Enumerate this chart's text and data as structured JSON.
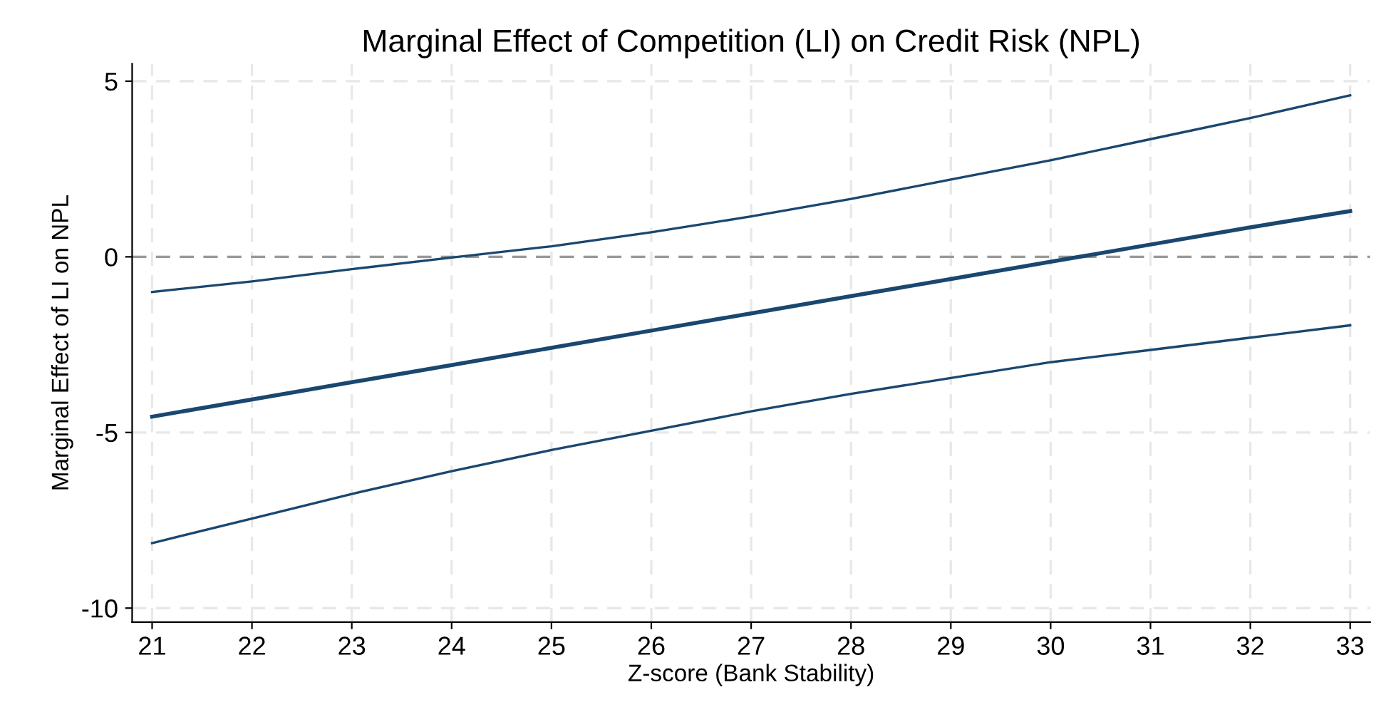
{
  "chart_data": {
    "type": "line",
    "title": "Marginal Effect of Competition (LI) on Credit Risk (NPL)",
    "xlabel": "Z-score (Bank Stability)",
    "ylabel": "Marginal Effect of LI on NPL",
    "x": [
      21,
      22,
      23,
      24,
      25,
      26,
      27,
      28,
      29,
      30,
      31,
      32,
      33
    ],
    "series": [
      {
        "color": "#1a476f",
        "values": [
          -1.0,
          -0.7,
          -0.35,
          -0.02,
          0.3,
          0.7,
          1.15,
          1.65,
          2.2,
          2.75,
          3.35,
          3.95,
          4.6
        ]
      },
      {
        "color": "#1a476f",
        "values": [
          -4.55,
          -4.06,
          -3.57,
          -3.08,
          -2.59,
          -2.1,
          -1.61,
          -1.12,
          -0.63,
          -0.14,
          0.35,
          0.84,
          1.3
        ]
      },
      {
        "color": "#1a476f",
        "values": [
          -8.15,
          -7.45,
          -6.75,
          -6.1,
          -5.5,
          -4.95,
          -4.4,
          -3.9,
          -3.45,
          -3.0,
          -2.65,
          -2.3,
          -1.95
        ]
      }
    ],
    "xlim": [
      20.8,
      33.2
    ],
    "xticks": [
      21,
      22,
      23,
      24,
      25,
      26,
      27,
      28,
      29,
      30,
      31,
      32,
      33
    ],
    "ylim": [
      -10.4,
      5.5
    ],
    "yticks": [
      -10,
      -5,
      0,
      5
    ],
    "ref_lines": [
      {
        "axis": "y",
        "value": 0,
        "color": "#999999",
        "line_style": "dashed"
      }
    ],
    "grid": true,
    "marker": "none",
    "line_style": "solid"
  }
}
